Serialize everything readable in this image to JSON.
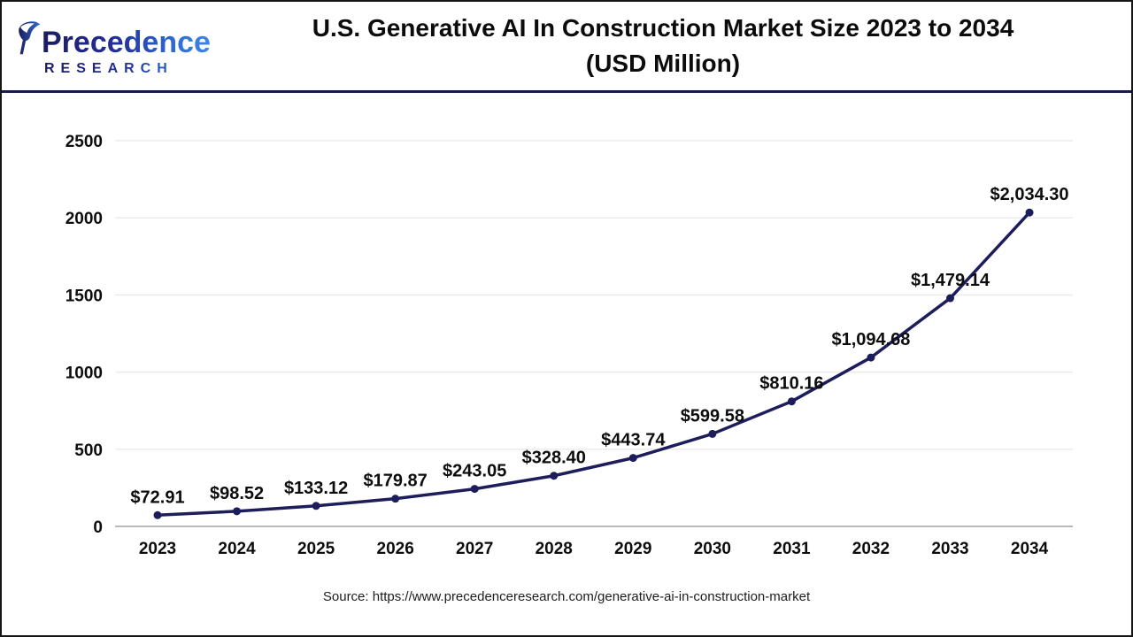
{
  "header": {
    "logo": {
      "brand": "Precedence",
      "subtitle": "RESEARCH"
    },
    "title_line1": "U.S. Generative AI In Construction Market Size 2023 to 2034",
    "title_line2": "(USD Million)"
  },
  "footer": {
    "source": "Source: https://www.precedenceresearch.com/generative-ai-in-construction-market"
  },
  "colors": {
    "line": "#1d1d5c",
    "marker": "#1d1d5c",
    "grid": "#ececec",
    "zero_axis": "#b9b9b9",
    "text": "#0d0d0d",
    "header_rule": "#191950",
    "logo_gradient_start": "#1b1b5e",
    "logo_gradient_end": "#3f86e2"
  },
  "chart_data": {
    "type": "line",
    "title": "U.S. Generative AI In Construction Market Size 2023 to 2034 (USD Million)",
    "categories": [
      "2023",
      "2024",
      "2025",
      "2026",
      "2027",
      "2028",
      "2029",
      "2030",
      "2031",
      "2032",
      "2033",
      "2034"
    ],
    "values": [
      72.91,
      98.52,
      133.12,
      179.87,
      243.05,
      328.4,
      443.74,
      599.58,
      810.16,
      1094.68,
      1479.14,
      2034.3
    ],
    "point_labels": [
      "$72.91",
      "$98.52",
      "$133.12",
      "$179.87",
      "$243.05",
      "$328.40",
      "$443.74",
      "$599.58",
      "$810.16",
      "$1,094.68",
      "$1,479.14",
      "$2,034.30"
    ],
    "xlabel": "",
    "ylabel": "",
    "ylim": [
      0,
      2500
    ],
    "yticks": [
      0,
      500,
      1000,
      1500,
      2000,
      2500
    ],
    "grid": true,
    "legend": false
  }
}
